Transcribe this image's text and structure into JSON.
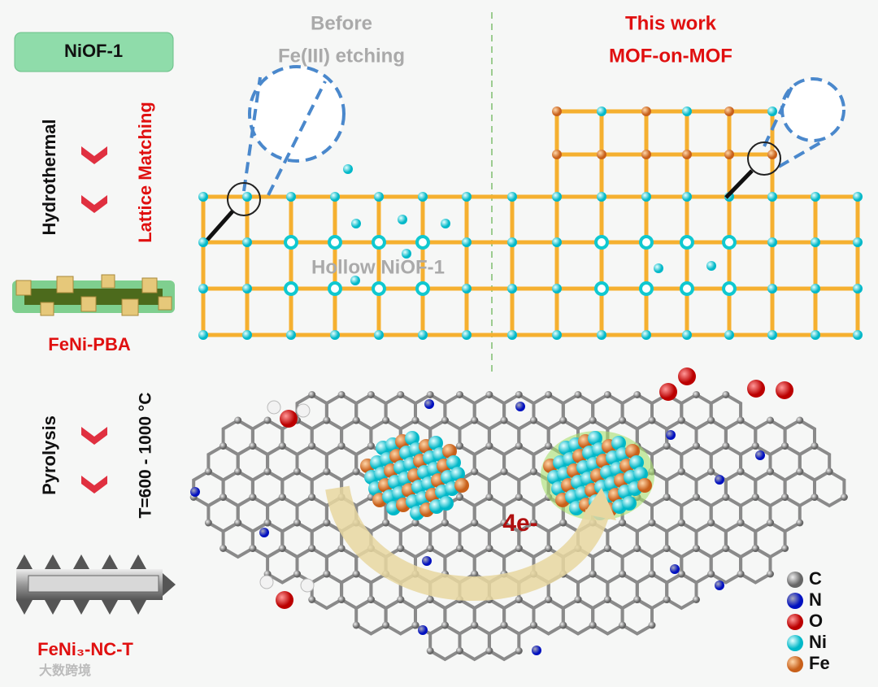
{
  "left_panel": {
    "start": "NiOF-1",
    "step1": "Hydrothermal",
    "step1_note": "Lattice Matching",
    "intermediate": "FeNi-PBA",
    "step2": "Pyrolysis",
    "step2_note": "T=600 - 1000 °C",
    "product": "FeNi₃-NC-T"
  },
  "top": {
    "before_title": "Before",
    "before_subtitle": "Fe(III) etching",
    "work_title": "This work",
    "work_subtitle": "MOF-on-MOF",
    "hollow_label": "Hollow NiOF-1"
  },
  "bottom": {
    "electron_label": "4e-",
    "legend": [
      "C",
      "N",
      "O",
      "Ni",
      "Fe"
    ]
  },
  "watermark": "大数跨境"
}
